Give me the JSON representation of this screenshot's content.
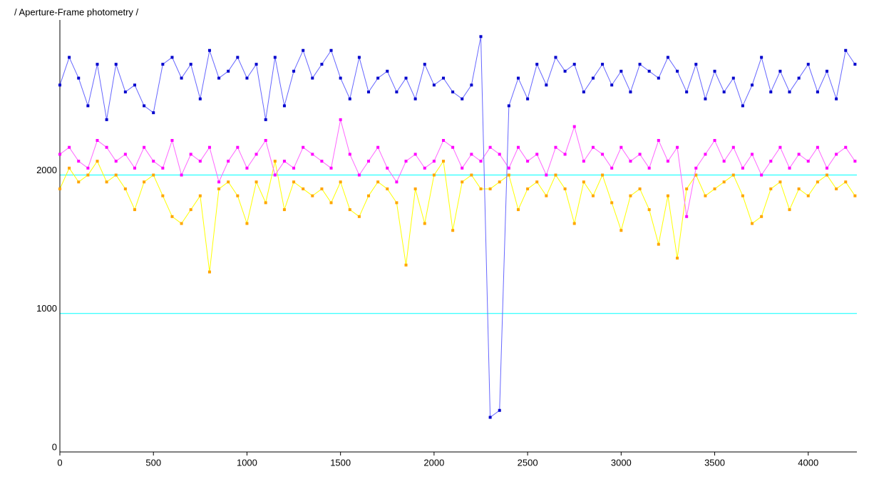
{
  "chart_data": {
    "type": "line",
    "title": "/ Aperture-Frame photometry /",
    "x": [
      0,
      50,
      100,
      150,
      200,
      250,
      300,
      350,
      400,
      450,
      500,
      550,
      600,
      650,
      700,
      750,
      800,
      850,
      900,
      950,
      1000,
      1050,
      1100,
      1150,
      1200,
      1250,
      1300,
      1350,
      1400,
      1450,
      1500,
      1550,
      1600,
      1650,
      1700,
      1750,
      1800,
      1850,
      1900,
      1950,
      2000,
      2050,
      2100,
      2150,
      2200,
      2250,
      2300,
      2350,
      2400,
      2450,
      2500,
      2550,
      2600,
      2650,
      2700,
      2750,
      2800,
      2850,
      2900,
      2950,
      3000,
      3050,
      3100,
      3150,
      3200,
      3250,
      3300,
      3350,
      3400,
      3450,
      3500,
      3550,
      3600,
      3650,
      3700,
      3750,
      3800,
      3850,
      3900,
      3950,
      4000,
      4050,
      4100,
      4150,
      4200,
      4250
    ],
    "series": [
      {
        "color": "#ffa500",
        "line_color": "#ffff00",
        "values": [
          1900,
          2050,
          1950,
          2000,
          2100,
          1950,
          2000,
          1900,
          1750,
          1950,
          2000,
          1850,
          1700,
          1650,
          1750,
          1850,
          1300,
          1900,
          1950,
          1850,
          1650,
          1950,
          1800,
          2100,
          1750,
          1950,
          1900,
          1850,
          1900,
          1800,
          1950,
          1750,
          1700,
          1850,
          1950,
          1900,
          1800,
          1350,
          1900,
          1650,
          2000,
          2100,
          1600,
          1950,
          2000,
          1900,
          1900,
          1950,
          2000,
          1750,
          1900,
          1950,
          1850,
          2000,
          1900,
          1650,
          1950,
          1850,
          2000,
          1800,
          1600,
          1850,
          1900,
          1750,
          1500,
          1850,
          1400,
          1900,
          2000,
          1850,
          1900,
          1950,
          2000,
          1850,
          1650,
          1700,
          1900,
          1950,
          1750,
          1900,
          1850,
          1950,
          2000,
          1900,
          1950,
          1850
        ]
      },
      {
        "color": "#ff00ff",
        "line_color": "#ff66ff",
        "values": [
          2150,
          2200,
          2100,
          2050,
          2250,
          2200,
          2100,
          2150,
          2050,
          2200,
          2100,
          2050,
          2250,
          2000,
          2150,
          2100,
          2200,
          1950,
          2100,
          2200,
          2050,
          2150,
          2250,
          2000,
          2100,
          2050,
          2200,
          2150,
          2100,
          2050,
          2400,
          2150,
          2000,
          2100,
          2200,
          2050,
          1950,
          2100,
          2150,
          2050,
          2100,
          2250,
          2200,
          2050,
          2150,
          2100,
          2200,
          2150,
          2050,
          2200,
          2100,
          2150,
          2000,
          2200,
          2150,
          2350,
          2100,
          2200,
          2150,
          2050,
          2200,
          2100,
          2150,
          2050,
          2250,
          2100,
          2200,
          1700,
          2050,
          2150,
          2250,
          2100,
          2200,
          2050,
          2150,
          2000,
          2100,
          2200,
          2050,
          2150,
          2100,
          2200,
          2050,
          2150,
          2200,
          2100
        ]
      },
      {
        "color": "#0000cc",
        "line_color": "#6666ff",
        "values": [
          2650,
          2850,
          2700,
          2500,
          2800,
          2400,
          2800,
          2600,
          2650,
          2500,
          2450,
          2800,
          2850,
          2700,
          2800,
          2550,
          2900,
          2700,
          2750,
          2850,
          2700,
          2800,
          2400,
          2850,
          2500,
          2750,
          2900,
          2700,
          2800,
          2900,
          2700,
          2550,
          2850,
          2600,
          2700,
          2750,
          2600,
          2700,
          2550,
          2800,
          2650,
          2700,
          2600,
          2550,
          2650,
          3000,
          250,
          300,
          2500,
          2700,
          2550,
          2800,
          2650,
          2850,
          2750,
          2800,
          2600,
          2700,
          2800,
          2650,
          2750,
          2600,
          2800,
          2750,
          2700,
          2850,
          2750,
          2600,
          2800,
          2550,
          2750,
          2600,
          2700,
          2500,
          2650,
          2850,
          2600,
          2750,
          2600,
          2700,
          2800,
          2600,
          2750,
          2550,
          2900,
          2800
        ]
      }
    ],
    "xlim": [
      0,
      4260
    ],
    "xticks": [
      0,
      500,
      1000,
      1500,
      2000,
      2500,
      3000,
      3500,
      4000
    ],
    "ylim": [
      0,
      3120
    ],
    "yticks": [
      0,
      1000,
      2000
    ],
    "grid": true,
    "grid_color": "#00ffff"
  }
}
